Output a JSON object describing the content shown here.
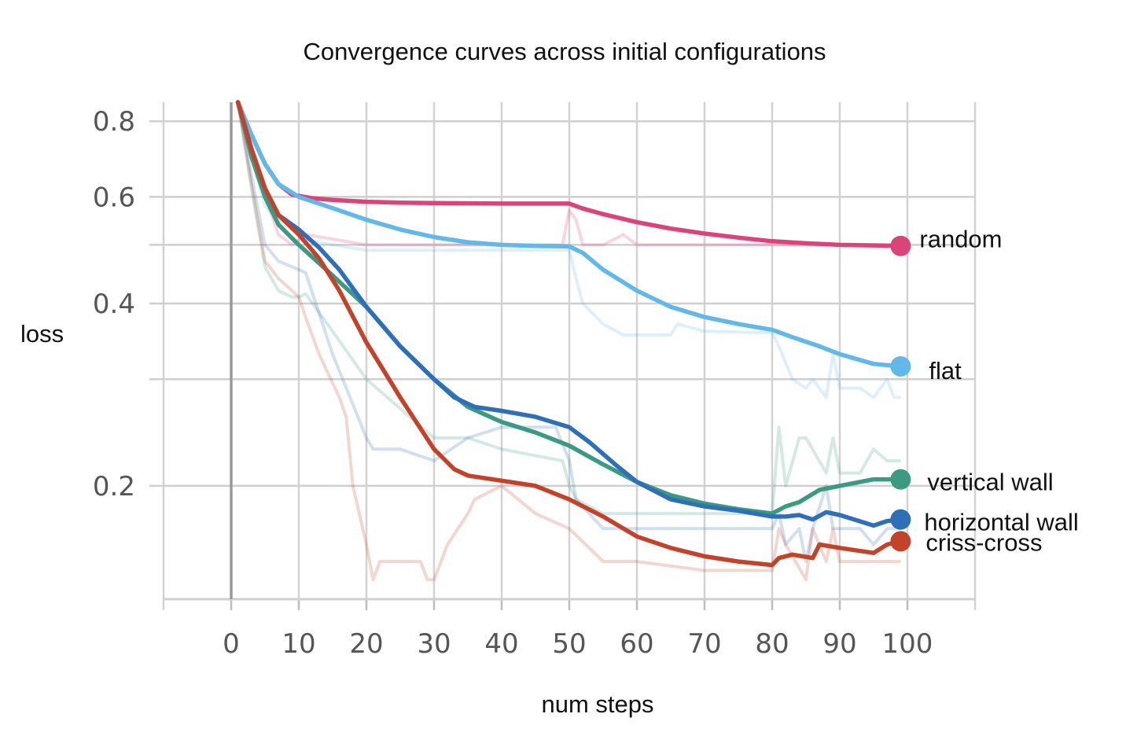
{
  "chart_data": {
    "type": "line",
    "title": "Convergence curves across initial configurations",
    "xlabel": "num steps",
    "ylabel": "loss",
    "xlim": [
      -10,
      110
    ],
    "ylim": [
      0.13,
      0.86
    ],
    "y_scale": "log",
    "grid": true,
    "x_ticks": [
      0,
      10,
      20,
      30,
      40,
      50,
      60,
      70,
      80,
      90,
      100
    ],
    "y_ticks": [
      {
        "value": 0.8,
        "label": "0.8"
      },
      {
        "value": 0.6,
        "label": "0.6"
      },
      {
        "value": 0.5,
        "label": ""
      },
      {
        "value": 0.4,
        "label": "0.4"
      },
      {
        "value": 0.3,
        "label": ""
      },
      {
        "value": 0.2,
        "label": "0.2"
      }
    ],
    "legend_placement": "right, at series end points",
    "series": [
      {
        "name": "random",
        "color": "#DA4478",
        "x": [
          1,
          3,
          5,
          7,
          9,
          12,
          15,
          20,
          25,
          30,
          40,
          50,
          52,
          55,
          60,
          65,
          70,
          75,
          80,
          85,
          90,
          95,
          99
        ],
        "values": [
          0.86,
          0.76,
          0.68,
          0.63,
          0.605,
          0.597,
          0.593,
          0.589,
          0.587,
          0.586,
          0.585,
          0.585,
          0.574,
          0.562,
          0.545,
          0.532,
          0.522,
          0.514,
          0.507,
          0.503,
          0.5,
          0.499,
          0.498
        ],
        "raw_x": [
          1,
          3,
          5,
          7,
          9,
          11,
          20,
          30,
          40,
          49,
          50,
          51,
          52,
          55,
          58,
          60,
          62,
          70,
          80,
          90,
          99
        ],
        "raw_values": [
          0.86,
          0.72,
          0.6,
          0.52,
          0.5,
          0.52,
          0.5,
          0.5,
          0.5,
          0.5,
          0.57,
          0.55,
          0.5,
          0.5,
          0.52,
          0.5,
          0.5,
          0.5,
          0.5,
          0.5,
          0.5
        ]
      },
      {
        "name": "flat",
        "color": "#62B8E8",
        "x": [
          1,
          3,
          5,
          7,
          10,
          15,
          20,
          25,
          30,
          35,
          40,
          45,
          50,
          52,
          55,
          60,
          65,
          70,
          75,
          80,
          83,
          87,
          90,
          95,
          99
        ],
        "values": [
          0.86,
          0.76,
          0.68,
          0.63,
          0.6,
          0.575,
          0.55,
          0.53,
          0.515,
          0.505,
          0.5,
          0.498,
          0.497,
          0.485,
          0.455,
          0.42,
          0.395,
          0.38,
          0.37,
          0.362,
          0.352,
          0.34,
          0.33,
          0.318,
          0.315
        ],
        "raw_x": [
          1,
          3,
          5,
          7,
          9,
          11,
          15,
          20,
          25,
          30,
          40,
          50,
          51,
          52,
          55,
          58,
          60,
          65,
          66,
          70,
          80,
          81,
          83,
          85,
          86,
          88,
          89,
          90,
          93,
          95,
          97,
          98,
          99
        ],
        "raw_values": [
          0.86,
          0.7,
          0.58,
          0.55,
          0.53,
          0.51,
          0.5,
          0.49,
          0.49,
          0.49,
          0.49,
          0.49,
          0.44,
          0.4,
          0.37,
          0.355,
          0.355,
          0.355,
          0.37,
          0.36,
          0.358,
          0.34,
          0.3,
          0.29,
          0.3,
          0.28,
          0.33,
          0.29,
          0.29,
          0.28,
          0.3,
          0.28,
          0.28
        ]
      },
      {
        "name": "vertical wall",
        "color": "#3D9A82",
        "x": [
          1,
          3,
          5,
          7,
          10,
          15,
          20,
          25,
          30,
          35,
          40,
          45,
          50,
          55,
          60,
          65,
          70,
          75,
          80,
          82,
          84,
          87,
          90,
          95,
          97,
          99
        ],
        "values": [
          0.86,
          0.7,
          0.6,
          0.54,
          0.5,
          0.445,
          0.395,
          0.34,
          0.3,
          0.27,
          0.255,
          0.245,
          0.233,
          0.217,
          0.203,
          0.193,
          0.187,
          0.183,
          0.18,
          0.185,
          0.188,
          0.197,
          0.2,
          0.205,
          0.205,
          0.205
        ],
        "raw_x": [
          1,
          3,
          5,
          7,
          9,
          10,
          11,
          15,
          20,
          30,
          35,
          40,
          49,
          50,
          51,
          55,
          60,
          65,
          80,
          81,
          82,
          84,
          85,
          88,
          89,
          90,
          93,
          95,
          97,
          99
        ],
        "raw_values": [
          0.86,
          0.62,
          0.46,
          0.42,
          0.41,
          0.41,
          0.415,
          0.36,
          0.3,
          0.24,
          0.24,
          0.23,
          0.22,
          0.2,
          0.19,
          0.18,
          0.18,
          0.18,
          0.18,
          0.25,
          0.2,
          0.24,
          0.24,
          0.21,
          0.24,
          0.21,
          0.21,
          0.23,
          0.22,
          0.22
        ]
      },
      {
        "name": "horizontal wall",
        "color": "#2F6FB8",
        "x": [
          1,
          3,
          5,
          7,
          10,
          13,
          16,
          20,
          25,
          30,
          33,
          36,
          40,
          45,
          50,
          53,
          57,
          60,
          65,
          70,
          75,
          80,
          82,
          84,
          86,
          88,
          90,
          95,
          97,
          99
        ],
        "values": [
          0.86,
          0.72,
          0.62,
          0.56,
          0.53,
          0.495,
          0.455,
          0.395,
          0.34,
          0.3,
          0.28,
          0.27,
          0.266,
          0.26,
          0.25,
          0.236,
          0.216,
          0.203,
          0.19,
          0.185,
          0.182,
          0.178,
          0.178,
          0.179,
          0.176,
          0.181,
          0.179,
          0.172,
          0.175,
          0.176
        ],
        "raw_x": [
          1,
          3,
          5,
          7,
          9,
          10,
          11,
          15,
          20,
          21,
          25,
          30,
          35,
          40,
          48,
          50,
          51,
          55,
          60,
          65,
          70,
          80,
          81,
          82,
          84,
          85,
          86,
          88,
          89,
          90,
          93,
          95,
          97,
          99
        ],
        "raw_values": [
          0.86,
          0.65,
          0.5,
          0.47,
          0.46,
          0.455,
          0.45,
          0.33,
          0.24,
          0.23,
          0.23,
          0.22,
          0.24,
          0.25,
          0.25,
          0.22,
          0.19,
          0.17,
          0.17,
          0.17,
          0.17,
          0.17,
          0.18,
          0.16,
          0.17,
          0.15,
          0.17,
          0.2,
          0.17,
          0.17,
          0.17,
          0.16,
          0.17,
          0.17
        ]
      },
      {
        "name": "criss-cross",
        "color": "#C2432A",
        "x": [
          1,
          3,
          5,
          7,
          10,
          13,
          16,
          20,
          25,
          30,
          33,
          35,
          40,
          45,
          50,
          55,
          60,
          65,
          70,
          75,
          80,
          81,
          83,
          86,
          87,
          90,
          95,
          97,
          99
        ],
        "values": [
          0.86,
          0.72,
          0.62,
          0.56,
          0.52,
          0.475,
          0.42,
          0.345,
          0.28,
          0.23,
          0.213,
          0.208,
          0.204,
          0.2,
          0.19,
          0.178,
          0.165,
          0.158,
          0.153,
          0.15,
          0.148,
          0.152,
          0.154,
          0.152,
          0.16,
          0.158,
          0.155,
          0.16,
          0.162
        ],
        "raw_x": [
          1,
          3,
          5,
          7,
          9,
          10,
          11,
          13,
          16,
          17,
          18,
          20,
          21,
          22,
          25,
          28,
          29,
          30,
          32,
          35,
          36,
          40,
          45,
          50,
          55,
          60,
          70,
          80,
          81,
          82,
          85,
          86,
          88,
          89,
          90,
          95,
          98,
          99
        ],
        "raw_values": [
          0.86,
          0.63,
          0.47,
          0.44,
          0.42,
          0.41,
          0.38,
          0.33,
          0.28,
          0.26,
          0.2,
          0.16,
          0.14,
          0.15,
          0.15,
          0.15,
          0.14,
          0.14,
          0.16,
          0.18,
          0.19,
          0.2,
          0.18,
          0.17,
          0.15,
          0.15,
          0.145,
          0.145,
          0.17,
          0.16,
          0.14,
          0.17,
          0.15,
          0.17,
          0.15,
          0.15,
          0.15,
          0.15
        ]
      }
    ]
  }
}
